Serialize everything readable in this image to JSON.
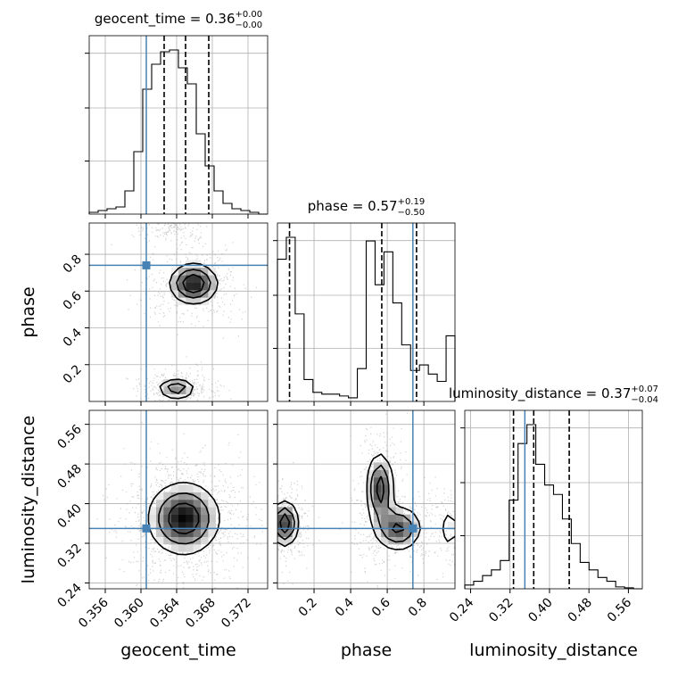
{
  "chart_data": {
    "type": "corner",
    "truth_color": "#4682b4",
    "parameters": [
      {
        "name": "geocent_time",
        "axis_label": "geocent_time",
        "title_text": "geocent_time = 0.36",
        "title_plus": "+0.00",
        "title_minus": "−0.00",
        "range": [
          0.3542,
          0.3742
        ],
        "ticks": [
          0.356,
          0.36,
          0.364,
          0.368,
          0.372
        ],
        "tick_labels": [
          "0.356",
          "0.360",
          "0.364",
          "0.368",
          "0.372"
        ],
        "truth": 0.3606,
        "quantiles": [
          0.3626,
          0.365,
          0.3676
        ],
        "hist_bin_start": 0.3542,
        "hist_bin_width": 0.001,
        "hist_values": [
          1,
          2,
          3,
          4,
          13,
          35,
          70,
          84,
          91,
          92,
          82,
          73,
          45,
          27,
          13,
          6,
          3,
          2,
          1,
          0
        ]
      },
      {
        "name": "phase",
        "axis_label": "phase",
        "title_text": "phase = 0.57",
        "title_plus": "+0.19",
        "title_minus": "−0.50",
        "range": [
          0.0,
          0.97
        ],
        "ticks": [
          0.2,
          0.4,
          0.6,
          0.8
        ],
        "tick_labels": [
          "0.2",
          "0.4",
          "0.6",
          "0.8"
        ],
        "truth": 0.74,
        "quantiles": [
          0.066,
          0.57,
          0.76
        ],
        "hist_bin_start": 0.0,
        "hist_bin_width": 0.0485,
        "hist_values": [
          78,
          90,
          48,
          12,
          5,
          4,
          4,
          3,
          2,
          18,
          88,
          64,
          82,
          54,
          31,
          17,
          20,
          15,
          11,
          36
        ]
      },
      {
        "name": "luminosity_distance",
        "axis_label": "luminosity_distance",
        "title_text": "luminosity_distance = 0.37",
        "title_plus": "+0.07",
        "title_minus": "−0.04",
        "range": [
          0.2282,
          0.5882
        ],
        "ticks": [
          0.24,
          0.32,
          0.4,
          0.48,
          0.56
        ],
        "tick_labels": [
          "0.24",
          "0.32",
          "0.40",
          "0.48",
          "0.56"
        ],
        "truth": 0.35,
        "quantiles": [
          0.327,
          0.368,
          0.44
        ],
        "hist_bin_start": 0.2282,
        "hist_bin_width": 0.018,
        "hist_values": [
          2,
          4,
          7,
          10,
          15,
          47,
          77,
          87,
          66,
          55,
          50,
          37,
          24,
          14,
          10,
          6,
          4,
          1,
          0.5,
          0
        ]
      }
    ],
    "pair_density": [
      {
        "x": "geocent_time",
        "y": "phase",
        "clusters": [
          {
            "x": 0.3659,
            "y": 0.64,
            "sx": 0.0016,
            "sy": 0.065,
            "w": 0.5
          },
          {
            "x": 0.364,
            "y": 0.07,
            "sx": 0.0013,
            "sy": 0.035,
            "w": 0.35
          },
          {
            "x": 0.3637,
            "y": 0.95,
            "sx": 0.0013,
            "sy": 0.03,
            "w": 0.15
          }
        ],
        "contour_levels": [
          0.25,
          0.5,
          0.75
        ],
        "scatter_points": 1200
      },
      {
        "x": "geocent_time",
        "y": "luminosity_distance",
        "clusters": [
          {
            "x": 0.3648,
            "y": 0.37,
            "sx": 0.0022,
            "sy": 0.04,
            "w": 1.0
          }
        ],
        "contour_levels": [
          0.2,
          0.45,
          0.75
        ],
        "scatter_points": 1300
      },
      {
        "x": "phase",
        "y": "luminosity_distance",
        "clusters": [
          {
            "x": 0.04,
            "y": 0.36,
            "sx": 0.04,
            "sy": 0.025,
            "w": 0.33
          },
          {
            "x": 0.56,
            "y": 0.43,
            "sx": 0.04,
            "sy": 0.04,
            "w": 0.3
          },
          {
            "x": 0.66,
            "y": 0.35,
            "sx": 0.07,
            "sy": 0.025,
            "w": 0.27
          },
          {
            "x": 0.94,
            "y": 0.35,
            "sx": 0.04,
            "sy": 0.03,
            "w": 0.1
          }
        ],
        "contour_levels": [
          0.2,
          0.45,
          0.75
        ],
        "scatter_points": 1400
      }
    ]
  }
}
